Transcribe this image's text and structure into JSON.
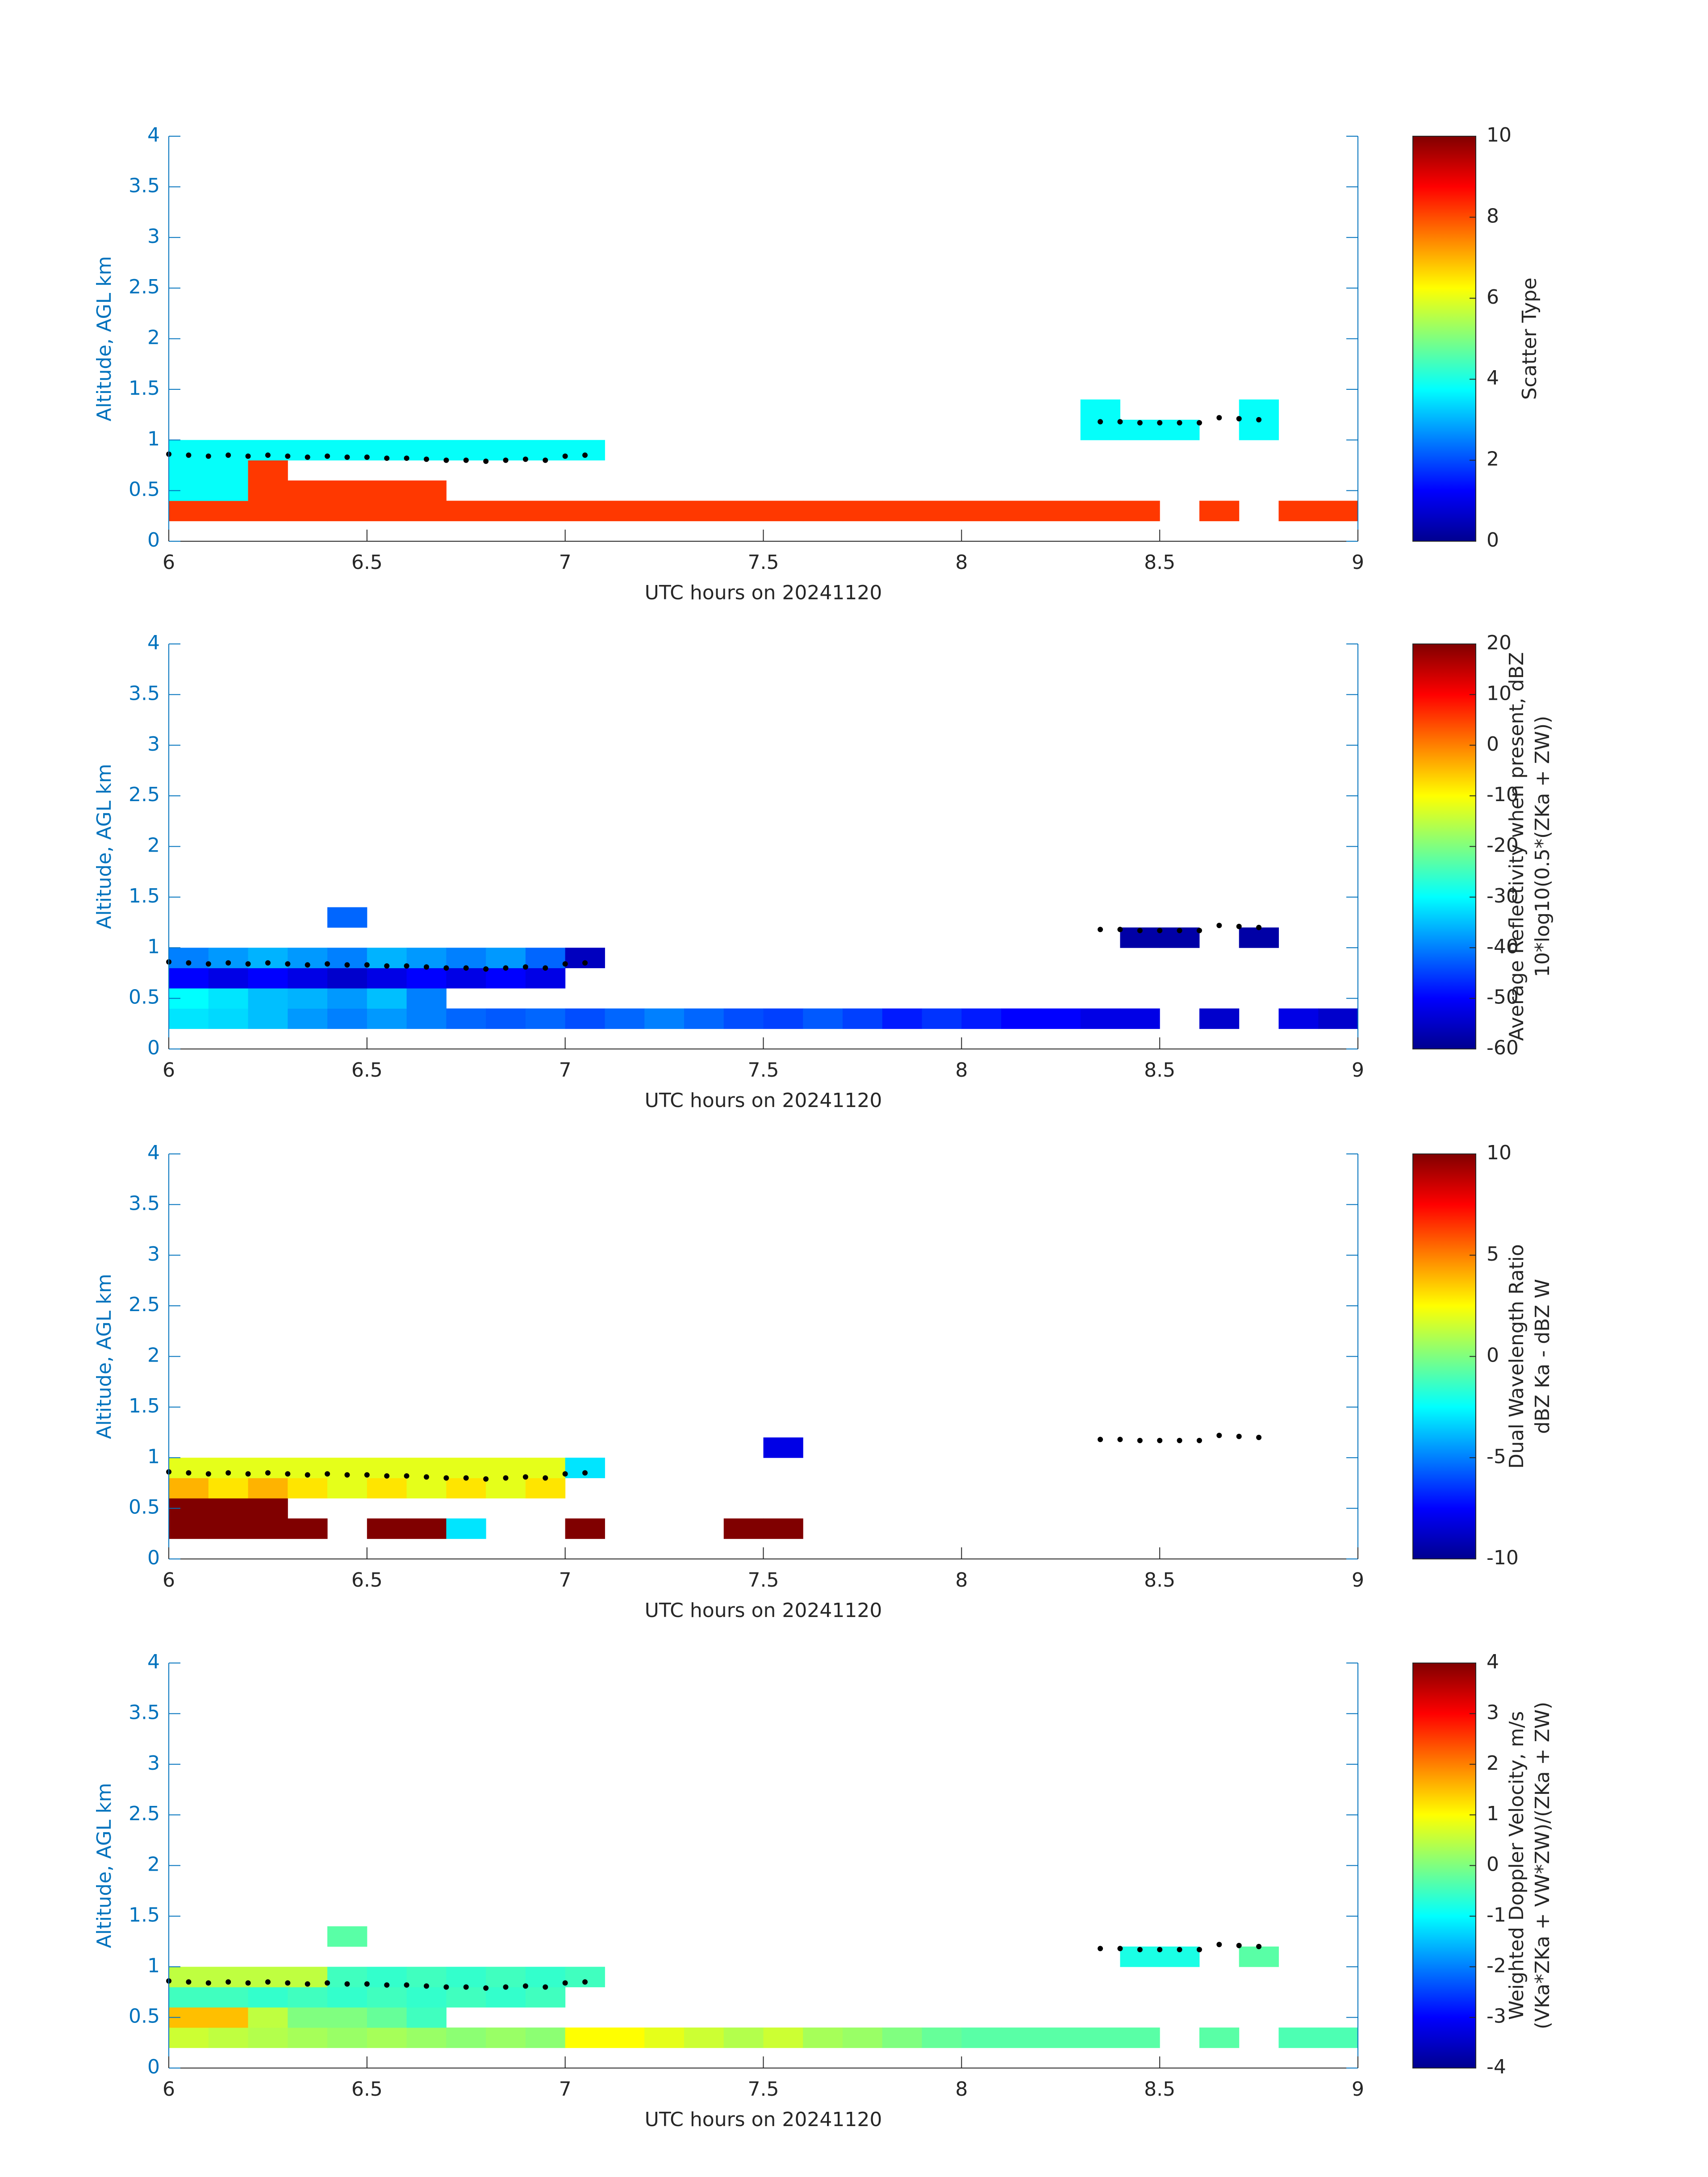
{
  "overlay": {
    "x": [
      6.0,
      6.05,
      6.1,
      6.15,
      6.2,
      6.25,
      6.3,
      6.35,
      6.4,
      6.45,
      6.5,
      6.55,
      6.6,
      6.65,
      6.7,
      6.75,
      6.8,
      6.85,
      6.9,
      6.95,
      7.0,
      7.05,
      8.35,
      8.4,
      8.45,
      8.5,
      8.55,
      8.6,
      8.65,
      8.7,
      8.75
    ],
    "y": [
      0.86,
      0.85,
      0.84,
      0.85,
      0.84,
      0.85,
      0.84,
      0.83,
      0.84,
      0.83,
      0.83,
      0.82,
      0.82,
      0.81,
      0.8,
      0.8,
      0.79,
      0.8,
      0.81,
      0.8,
      0.84,
      0.85,
      1.18,
      1.18,
      1.17,
      1.17,
      1.17,
      1.17,
      1.22,
      1.21,
      1.2
    ]
  },
  "chart_data": [
    {
      "type": "heatmap",
      "xlabel": "UTC hours on 20241120",
      "ylabel": "Altitude, AGL km",
      "clabel": [
        "Scatter Type"
      ],
      "xlim": [
        6,
        9
      ],
      "xticks": [
        6,
        6.5,
        7,
        7.5,
        8,
        8.5,
        9
      ],
      "ylim": [
        0,
        4
      ],
      "yticks": [
        0,
        0.5,
        1,
        1.5,
        2,
        2.5,
        3,
        3.5,
        4
      ],
      "colormap": "jet",
      "clim": [
        0,
        10
      ],
      "cticks": [
        0,
        2,
        4,
        6,
        8,
        10
      ],
      "xbins": [
        6.0,
        6.1,
        6.2,
        6.3,
        6.4,
        6.5,
        6.6,
        6.7,
        6.8,
        6.9,
        7.0,
        7.1,
        7.2,
        7.3,
        7.4,
        7.5,
        7.6,
        7.7,
        7.8,
        7.9,
        8.0,
        8.1,
        8.2,
        8.3,
        8.4,
        8.5,
        8.6,
        8.7,
        8.8,
        8.9,
        9.0
      ],
      "ybins": [
        0.2,
        0.4,
        0.6,
        0.8,
        1.0,
        1.2,
        1.4
      ],
      "values": [
        [
          8.2,
          8.2,
          8.2,
          8.2,
          8.2,
          8.2,
          8.2,
          8.2,
          8.2,
          8.2,
          8.2,
          8.2,
          8.2,
          8.2,
          8.2,
          8.2,
          8.2,
          8.2,
          8.2,
          8.2,
          8.2,
          8.2,
          8.2,
          8.2,
          8.2,
          null,
          8.2,
          null,
          8.2,
          8.2
        ],
        [
          3.8,
          3.8,
          8.2,
          8.2,
          8.2,
          8.2,
          8.2,
          null,
          null,
          null,
          null,
          null,
          null,
          null,
          null,
          null,
          null,
          null,
          null,
          null,
          null,
          null,
          null,
          null,
          null,
          null,
          null,
          null,
          null,
          null
        ],
        [
          3.8,
          3.8,
          8.2,
          null,
          null,
          null,
          null,
          null,
          null,
          null,
          null,
          null,
          null,
          null,
          null,
          null,
          null,
          null,
          null,
          null,
          null,
          null,
          null,
          null,
          null,
          null,
          null,
          null,
          null,
          null
        ],
        [
          3.8,
          3.8,
          3.8,
          3.8,
          3.8,
          3.8,
          3.8,
          3.8,
          3.8,
          3.8,
          3.8,
          null,
          null,
          null,
          null,
          null,
          null,
          null,
          null,
          null,
          null,
          null,
          null,
          null,
          null,
          null,
          null,
          null,
          null,
          null
        ],
        [
          null,
          null,
          null,
          null,
          null,
          null,
          null,
          null,
          null,
          null,
          null,
          null,
          null,
          null,
          null,
          null,
          null,
          null,
          null,
          null,
          null,
          null,
          null,
          3.8,
          3.8,
          3.8,
          null,
          3.8,
          null,
          null
        ],
        [
          null,
          null,
          null,
          null,
          null,
          null,
          null,
          null,
          null,
          null,
          null,
          null,
          null,
          null,
          null,
          null,
          null,
          null,
          null,
          null,
          null,
          null,
          null,
          3.8,
          null,
          null,
          null,
          3.8,
          null,
          null
        ]
      ]
    },
    {
      "type": "heatmap",
      "xlabel": "UTC hours on 20241120",
      "ylabel": "Altitude, AGL km",
      "clabel": [
        "Average Reflectivity when present, dBZ",
        "10*log10(0.5*(ZKa + ZW))"
      ],
      "xlim": [
        6,
        9
      ],
      "xticks": [
        6,
        6.5,
        7,
        7.5,
        8,
        8.5,
        9
      ],
      "ylim": [
        0,
        4
      ],
      "yticks": [
        0,
        0.5,
        1,
        1.5,
        2,
        2.5,
        3,
        3.5,
        4
      ],
      "colormap": "jet",
      "clim": [
        -60,
        20
      ],
      "cticks": [
        -60,
        -50,
        -40,
        -30,
        -20,
        -10,
        0,
        10,
        20
      ],
      "xbins": [
        6.0,
        6.1,
        6.2,
        6.3,
        6.4,
        6.5,
        6.6,
        6.7,
        6.8,
        6.9,
        7.0,
        7.1,
        7.2,
        7.3,
        7.4,
        7.5,
        7.6,
        7.7,
        7.8,
        7.9,
        8.0,
        8.1,
        8.2,
        8.3,
        8.4,
        8.5,
        8.6,
        8.7,
        8.8,
        8.9,
        9.0
      ],
      "ybins": [
        0.2,
        0.4,
        0.6,
        0.8,
        1.0,
        1.2,
        1.4
      ],
      "values": [
        [
          -32,
          -33,
          -35,
          -38,
          -40,
          -38,
          -40,
          -42,
          -43,
          -42,
          -44,
          -42,
          -40,
          -42,
          -44,
          -45,
          -43,
          -45,
          -48,
          -46,
          -48,
          -50,
          -50,
          -52,
          -52,
          null,
          -54,
          null,
          -52,
          -54
        ],
        [
          -30,
          -32,
          -35,
          -36,
          -38,
          -35,
          -40,
          null,
          null,
          null,
          null,
          null,
          null,
          null,
          null,
          null,
          null,
          null,
          null,
          null,
          null,
          null,
          null,
          null,
          null,
          null,
          null,
          null,
          null,
          null
        ],
        [
          -50,
          -52,
          -50,
          -52,
          -54,
          -52,
          -50,
          -52,
          -50,
          -52,
          null,
          null,
          null,
          null,
          null,
          null,
          null,
          null,
          null,
          null,
          null,
          null,
          null,
          null,
          null,
          null,
          null,
          null,
          null,
          null
        ],
        [
          -40,
          -38,
          -36,
          -38,
          -40,
          -36,
          -38,
          -40,
          -38,
          -42,
          -55,
          null,
          null,
          null,
          null,
          null,
          null,
          null,
          null,
          null,
          null,
          null,
          null,
          null,
          null,
          null,
          null,
          null,
          null,
          null
        ],
        [
          null,
          null,
          null,
          null,
          null,
          null,
          null,
          null,
          null,
          null,
          null,
          null,
          null,
          null,
          null,
          null,
          null,
          null,
          null,
          null,
          null,
          null,
          null,
          null,
          -57,
          -57,
          null,
          -57,
          null,
          null
        ],
        [
          null,
          null,
          null,
          null,
          -42,
          null,
          null,
          null,
          null,
          null,
          null,
          null,
          null,
          null,
          null,
          null,
          null,
          null,
          null,
          null,
          null,
          null,
          null,
          null,
          null,
          null,
          null,
          null,
          null,
          null
        ]
      ]
    },
    {
      "type": "heatmap",
      "xlabel": "UTC hours on 20241120",
      "ylabel": "Altitude, AGL km",
      "clabel": [
        "Dual Wavelength Ratio",
        "dBZ Ka - dBZ W"
      ],
      "xlim": [
        6,
        9
      ],
      "xticks": [
        6,
        6.5,
        7,
        7.5,
        8,
        8.5,
        9
      ],
      "ylim": [
        0,
        4
      ],
      "yticks": [
        0,
        0.5,
        1,
        1.5,
        2,
        2.5,
        3,
        3.5,
        4
      ],
      "colormap": "jet",
      "clim": [
        -10,
        10
      ],
      "cticks": [
        -10,
        -5,
        0,
        5,
        10
      ],
      "xbins": [
        6.0,
        6.1,
        6.2,
        6.3,
        6.4,
        6.5,
        6.6,
        6.7,
        6.8,
        6.9,
        7.0,
        7.1,
        7.2,
        7.3,
        7.4,
        7.5,
        7.6,
        7.7,
        7.8,
        7.9,
        8.0,
        8.1,
        8.2,
        8.3,
        8.4,
        8.5,
        8.6,
        8.7,
        8.8,
        8.9,
        9.0
      ],
      "ybins": [
        0.2,
        0.4,
        0.6,
        0.8,
        1.0,
        1.2,
        1.4
      ],
      "values": [
        [
          10,
          10,
          10,
          10,
          null,
          10,
          10,
          -3,
          null,
          null,
          10,
          null,
          null,
          null,
          10,
          10,
          null,
          null,
          null,
          null,
          null,
          null,
          null,
          null,
          null,
          null,
          null,
          null,
          null,
          null
        ],
        [
          10,
          10,
          10,
          null,
          null,
          null,
          null,
          null,
          null,
          null,
          null,
          null,
          null,
          null,
          null,
          null,
          null,
          null,
          null,
          null,
          null,
          null,
          null,
          null,
          null,
          null,
          null,
          null,
          null,
          null
        ],
        [
          4,
          3,
          4,
          3,
          2,
          3,
          2,
          3,
          2,
          3,
          null,
          null,
          null,
          null,
          null,
          null,
          null,
          null,
          null,
          null,
          null,
          null,
          null,
          null,
          null,
          null,
          null,
          null,
          null,
          null
        ],
        [
          2,
          2,
          2,
          2,
          2,
          2,
          2,
          2,
          2,
          2,
          -3,
          null,
          null,
          null,
          null,
          null,
          null,
          null,
          null,
          null,
          null,
          null,
          null,
          null,
          null,
          null,
          null,
          null,
          null,
          null
        ],
        [
          null,
          null,
          null,
          null,
          null,
          null,
          null,
          null,
          null,
          null,
          null,
          null,
          null,
          null,
          null,
          -8,
          null,
          null,
          null,
          null,
          null,
          null,
          null,
          null,
          null,
          null,
          null,
          null,
          null,
          null
        ],
        [
          null,
          null,
          null,
          null,
          null,
          null,
          null,
          null,
          null,
          null,
          null,
          null,
          null,
          null,
          null,
          null,
          null,
          null,
          null,
          null,
          null,
          null,
          null,
          null,
          null,
          null,
          null,
          null,
          null,
          null
        ]
      ]
    },
    {
      "type": "heatmap",
      "xlabel": "UTC hours on 20241120",
      "ylabel": "Altitude, AGL km",
      "clabel": [
        "Weighted Doppler Velocity, m/s",
        "(VKa*ZKa + VW*ZW)/(ZKa + ZW)"
      ],
      "xlim": [
        6,
        9
      ],
      "xticks": [
        6,
        6.5,
        7,
        7.5,
        8,
        8.5,
        9
      ],
      "ylim": [
        0,
        4
      ],
      "yticks": [
        0,
        0.5,
        1,
        1.5,
        2,
        2.5,
        3,
        3.5,
        4
      ],
      "colormap": "jet",
      "clim": [
        -4,
        4
      ],
      "cticks": [
        -4,
        -3,
        -2,
        -1,
        0,
        1,
        2,
        3,
        4
      ],
      "xbins": [
        6.0,
        6.1,
        6.2,
        6.3,
        6.4,
        6.5,
        6.6,
        6.7,
        6.8,
        6.9,
        7.0,
        7.1,
        7.2,
        7.3,
        7.4,
        7.5,
        7.6,
        7.7,
        7.8,
        7.9,
        8.0,
        8.1,
        8.2,
        8.3,
        8.4,
        8.5,
        8.6,
        8.7,
        8.8,
        8.9,
        9.0
      ],
      "ybins": [
        0.2,
        0.4,
        0.6,
        0.8,
        1.0,
        1.2,
        1.4
      ],
      "values": [
        [
          0.6,
          0.5,
          0.4,
          0.3,
          0.2,
          0.3,
          0.2,
          0.1,
          0.2,
          0.1,
          1,
          1,
          0.8,
          0.6,
          0.4,
          0.6,
          0.3,
          0.2,
          0,
          -0.2,
          -0.3,
          -0.3,
          -0.3,
          -0.3,
          -0.3,
          null,
          -0.3,
          null,
          -0.4,
          -0.4
        ],
        [
          1.5,
          1.5,
          0.5,
          0,
          0,
          -0.2,
          -0.5,
          null,
          null,
          null,
          null,
          null,
          null,
          null,
          null,
          null,
          null,
          null,
          null,
          null,
          null,
          null,
          null,
          null,
          null,
          null,
          null,
          null,
          null,
          null
        ],
        [
          -0.5,
          -0.5,
          -0.6,
          -0.5,
          -0.6,
          -0.5,
          -0.6,
          -0.5,
          -0.6,
          -0.5,
          null,
          null,
          null,
          null,
          null,
          null,
          null,
          null,
          null,
          null,
          null,
          null,
          null,
          null,
          null,
          null,
          null,
          null,
          null,
          null
        ],
        [
          0.5,
          0.5,
          0.5,
          0.5,
          -0.5,
          -0.6,
          -0.5,
          -0.6,
          -0.5,
          -0.6,
          -0.5,
          null,
          null,
          null,
          null,
          null,
          null,
          null,
          null,
          null,
          null,
          null,
          null,
          null,
          null,
          null,
          null,
          null,
          null,
          null
        ],
        [
          null,
          null,
          null,
          null,
          null,
          null,
          null,
          null,
          null,
          null,
          null,
          null,
          null,
          null,
          null,
          null,
          null,
          null,
          null,
          null,
          null,
          null,
          null,
          null,
          -0.8,
          -0.8,
          null,
          -0.3,
          null,
          null
        ],
        [
          null,
          null,
          null,
          null,
          -0.3,
          null,
          null,
          null,
          null,
          null,
          null,
          null,
          null,
          null,
          null,
          null,
          null,
          null,
          null,
          null,
          null,
          null,
          null,
          null,
          null,
          null,
          null,
          null,
          null,
          null
        ]
      ]
    }
  ]
}
